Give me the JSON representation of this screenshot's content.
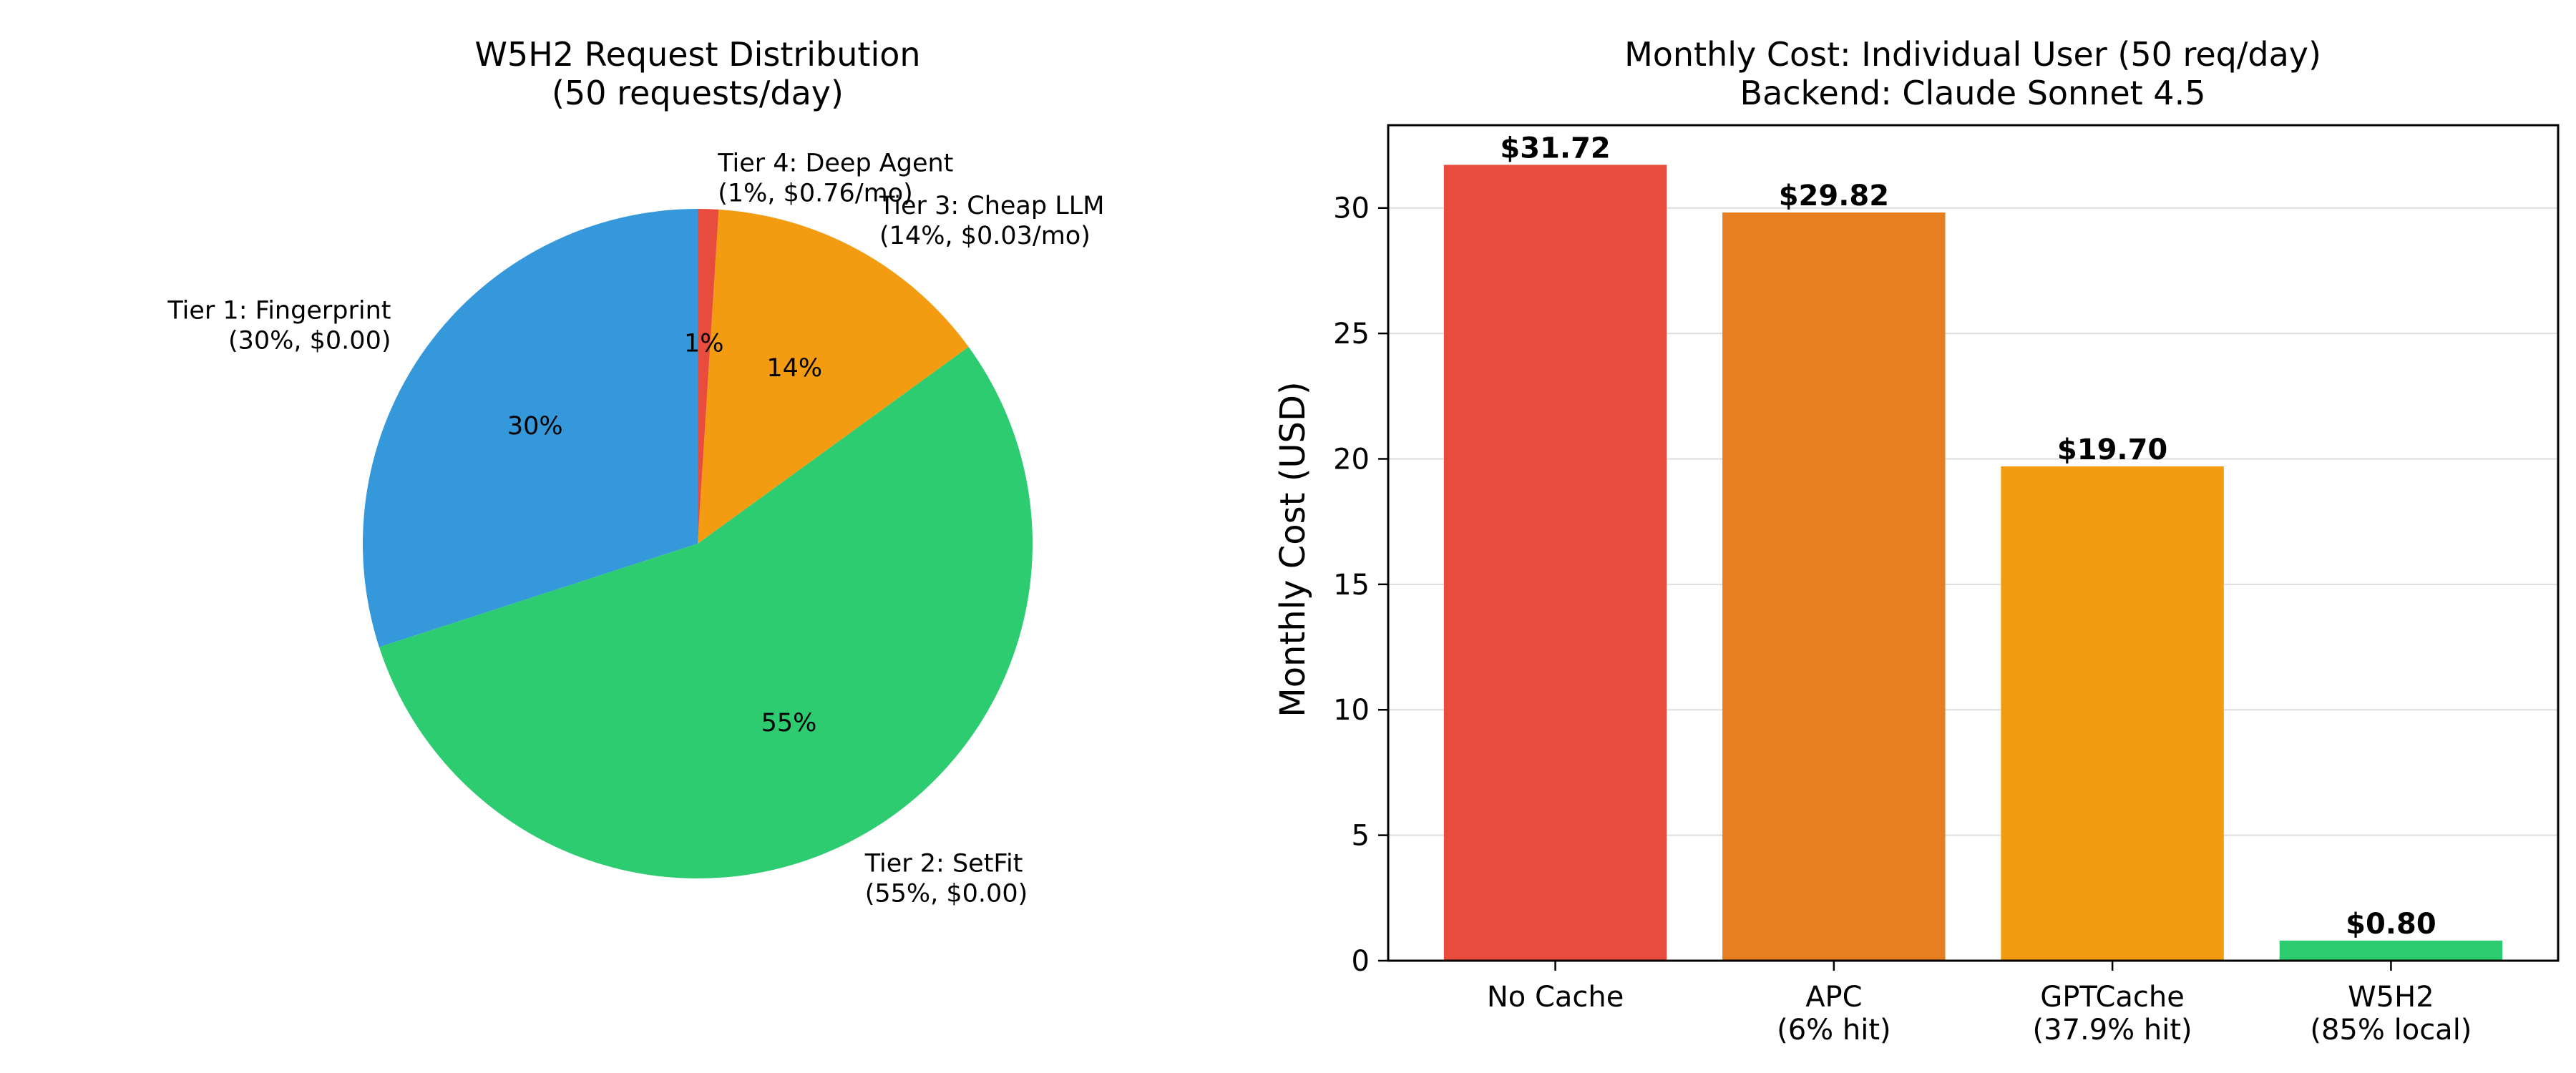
{
  "chart_data": [
    {
      "type": "pie",
      "title": "W5H2 Request Distribution",
      "subtitle": "(50 requests/day)",
      "start_angle_deg": 90,
      "direction": "counterclockwise",
      "slices": [
        {
          "name": "Tier 1: Fingerprint",
          "detail": "(30%, $0.00)",
          "value": 30,
          "pct_label": "30%",
          "color": "#3498db"
        },
        {
          "name": "Tier 2: SetFit",
          "detail": "(55%, $0.00)",
          "value": 55,
          "pct_label": "55%",
          "color": "#2ecc71"
        },
        {
          "name": "Tier 3: Cheap LLM",
          "detail": "(14%, $0.03/mo)",
          "value": 14,
          "pct_label": "14%",
          "color": "#f39c12"
        },
        {
          "name": "Tier 4: Deep Agent",
          "detail": "(1%, $0.76/mo)",
          "value": 1,
          "pct_label": "1%",
          "color": "#e74c3c"
        }
      ]
    },
    {
      "type": "bar",
      "title": "Monthly Cost: Individual User (50 req/day)",
      "subtitle": "Backend: Claude Sonnet 4.5",
      "ylabel": "Monthly Cost (USD)",
      "xlabel": "",
      "ylim": [
        0,
        33.3
      ],
      "yticks": [
        0,
        5,
        10,
        15,
        20,
        25,
        30
      ],
      "grid": "horizontal",
      "categories": [
        {
          "line1": "No Cache",
          "line2": ""
        },
        {
          "line1": "APC",
          "line2": "(6% hit)"
        },
        {
          "line1": "GPTCache",
          "line2": "(37.9% hit)"
        },
        {
          "line1": "W5H2",
          "line2": "(85% local)"
        }
      ],
      "values": [
        31.72,
        29.82,
        19.7,
        0.8
      ],
      "value_labels": [
        "$31.72",
        "$29.82",
        "$19.70",
        "$0.80"
      ],
      "colors": [
        "#e74c3c",
        "#e67e22",
        "#f39c12",
        "#2ecc71"
      ]
    }
  ]
}
